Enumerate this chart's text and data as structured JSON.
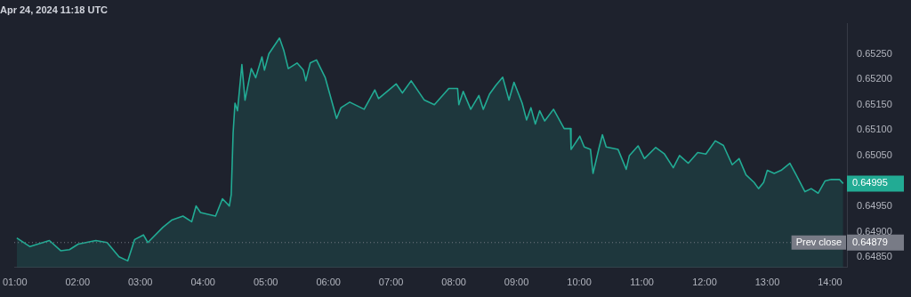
{
  "chart_data": {
    "type": "area",
    "title": "Apr 24, 2024 11:18 UTC",
    "x": [
      1.03,
      1.24,
      1.55,
      1.73,
      1.87,
      2.01,
      2.29,
      2.47,
      2.66,
      2.8,
      2.91,
      3.05,
      3.12,
      3.36,
      3.5,
      3.68,
      3.82,
      3.89,
      3.96,
      4.2,
      4.31,
      4.42,
      4.45,
      4.48,
      4.51,
      4.55,
      4.62,
      4.67,
      4.77,
      4.84,
      4.94,
      4.98,
      5.05,
      5.22,
      5.29,
      5.36,
      5.5,
      5.6,
      5.64,
      5.71,
      5.81,
      5.95,
      6.13,
      6.2,
      6.34,
      6.57,
      6.74,
      6.8,
      7.08,
      7.18,
      7.32,
      7.53,
      7.69,
      7.92,
      8.06,
      8.08,
      8.15,
      8.27,
      8.4,
      8.47,
      8.57,
      8.67,
      8.78,
      8.88,
      8.96,
      9.09,
      9.16,
      9.23,
      9.3,
      9.37,
      9.45,
      9.59,
      9.76,
      9.86,
      9.87,
      10.01,
      10.08,
      10.18,
      10.22,
      10.32,
      10.37,
      10.43,
      10.62,
      10.75,
      10.8,
      10.94,
      11.04,
      11.22,
      11.36,
      11.5,
      11.6,
      11.74,
      11.89,
      12.02,
      12.17,
      12.3,
      12.44,
      12.55,
      12.66,
      12.79,
      12.86,
      12.94,
      13.0,
      13.11,
      13.22,
      13.36,
      13.46,
      13.6,
      13.7,
      13.81,
      13.92,
      14.02,
      14.15,
      14.21
    ],
    "series": [
      {
        "color": "#22ab94",
        "values": [
          0.64888,
          0.64871,
          0.64883,
          0.64863,
          0.64865,
          0.64876,
          0.64883,
          0.64879,
          0.64851,
          0.64843,
          0.64885,
          0.64894,
          0.64879,
          0.64909,
          0.64923,
          0.64931,
          0.6492,
          0.64951,
          0.64938,
          0.64931,
          0.64965,
          0.64951,
          0.64973,
          0.65094,
          0.65153,
          0.65138,
          0.65229,
          0.65159,
          0.65221,
          0.65203,
          0.65244,
          0.65218,
          0.6525,
          0.65281,
          0.65256,
          0.65221,
          0.65232,
          0.65218,
          0.65197,
          0.65232,
          0.65238,
          0.65203,
          0.65123,
          0.65144,
          0.65155,
          0.65141,
          0.65179,
          0.65162,
          0.65191,
          0.65173,
          0.65197,
          0.65159,
          0.6515,
          0.65182,
          0.65182,
          0.6515,
          0.65176,
          0.65141,
          0.65168,
          0.65141,
          0.65171,
          0.65188,
          0.65204,
          0.65159,
          0.65194,
          0.65153,
          0.6512,
          0.65144,
          0.65112,
          0.65138,
          0.65118,
          0.65141,
          0.65103,
          0.65103,
          0.65062,
          0.65088,
          0.65067,
          0.65062,
          0.65015,
          0.65067,
          0.65091,
          0.65067,
          0.65062,
          0.65023,
          0.6505,
          0.65069,
          0.65044,
          0.65066,
          0.65053,
          0.65026,
          0.6505,
          0.65035,
          0.65056,
          0.65053,
          0.65079,
          0.6507,
          0.65032,
          0.65044,
          0.65012,
          0.64997,
          0.64985,
          0.64997,
          0.65021,
          0.65015,
          0.65021,
          0.65035,
          0.65012,
          0.64979,
          0.64985,
          0.64976,
          0.65,
          0.65003,
          0.65003,
          0.64995
        ]
      }
    ],
    "xlim": [
      0.99,
      14.27
    ],
    "xticks": [
      {
        "value": 1,
        "label": "01:00"
      },
      {
        "value": 2,
        "label": "02:00"
      },
      {
        "value": 3,
        "label": "03:00"
      },
      {
        "value": 4,
        "label": "04:00"
      },
      {
        "value": 5,
        "label": "05:00"
      },
      {
        "value": 6,
        "label": "06:00"
      },
      {
        "value": 7,
        "label": "07:00"
      },
      {
        "value": 8,
        "label": "08:00"
      },
      {
        "value": 9,
        "label": "09:00"
      },
      {
        "value": 10,
        "label": "10:00"
      },
      {
        "value": 11,
        "label": "11:00"
      },
      {
        "value": 12,
        "label": "12:00"
      },
      {
        "value": 13,
        "label": "13:00"
      },
      {
        "value": 14,
        "label": "14:00"
      }
    ],
    "ylim": [
      0.6483,
      0.6531
    ],
    "yticks": [
      {
        "value": 0.6485,
        "label": "0.64850"
      },
      {
        "value": 0.649,
        "label": "0.64900"
      },
      {
        "value": 0.6495,
        "label": "0.64950"
      },
      {
        "value": 0.6505,
        "label": "0.65050"
      },
      {
        "value": 0.651,
        "label": "0.65100"
      },
      {
        "value": 0.6515,
        "label": "0.65150"
      },
      {
        "value": 0.652,
        "label": "0.65200"
      },
      {
        "value": 0.6525,
        "label": "0.65250"
      }
    ],
    "ref_lines": [
      {
        "axis": "y",
        "value": 0.64879,
        "label": "Prev close",
        "color": "#787b86",
        "line_style": "dotted"
      }
    ],
    "annotations": [
      "0.64995",
      "0.64879"
    ],
    "line_style": "solid",
    "marker": "none"
  }
}
